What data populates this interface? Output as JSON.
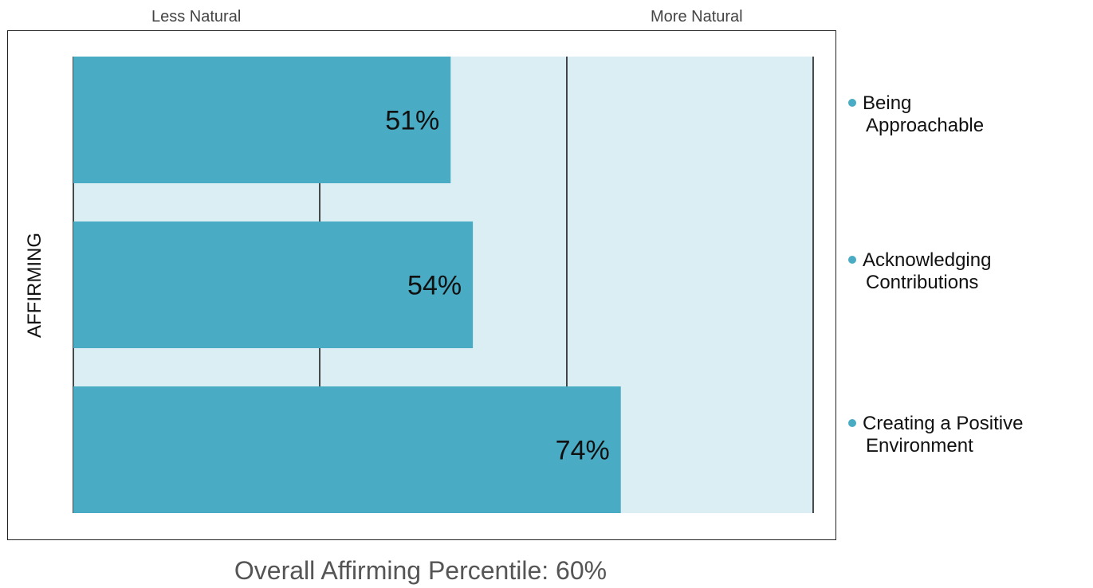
{
  "scale": {
    "left_label": "Less Natural",
    "right_label": "More Natural"
  },
  "axis_label": "AFFIRMING",
  "legend": [
    {
      "line1": "Being",
      "line2": "Approachable"
    },
    {
      "line1": "Acknowledging",
      "line2": "Contributions"
    },
    {
      "line1": "Creating a Positive",
      "line2": "Environment"
    }
  ],
  "footer": "Overall Affirming Percentile: 60%",
  "colors": {
    "bar": "#4aabc4",
    "track": "#daeef3",
    "grid": "#111111",
    "bullet": "#4aabc4"
  },
  "chart_data": {
    "type": "bar",
    "orientation": "horizontal",
    "categories": [
      "Being Approachable",
      "Acknowledging Contributions",
      "Creating a Positive Environment"
    ],
    "values": [
      51,
      54,
      74
    ],
    "value_labels": [
      "51%",
      "54%",
      "74%"
    ],
    "xlim": [
      0,
      100
    ],
    "gridlines": [
      33.3,
      66.7,
      100
    ]
  }
}
